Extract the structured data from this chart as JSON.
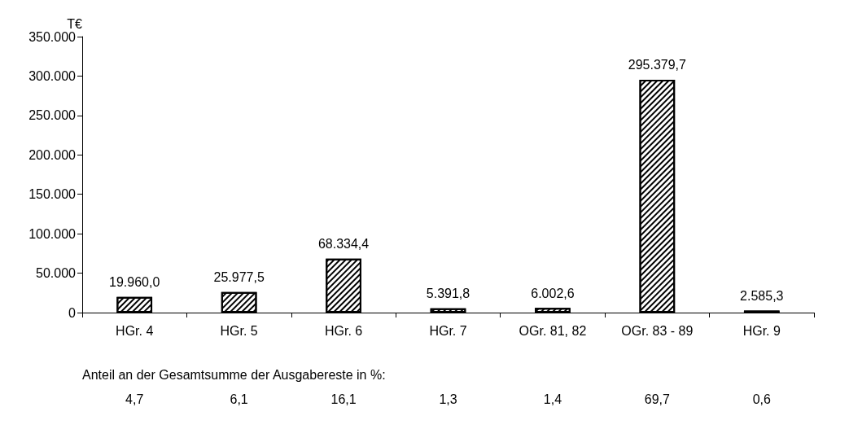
{
  "chart_data": {
    "type": "bar",
    "ylabel": "T€",
    "categories": [
      "HGr. 4",
      "HGr. 5",
      "HGr. 6",
      "HGr. 7",
      "OGr. 81, 82",
      "OGr. 83 - 89",
      "HGr. 9"
    ],
    "values": [
      19960.0,
      25977.5,
      68334.4,
      5391.8,
      6002.6,
      295379.7,
      2585.3
    ],
    "value_labels": [
      "19.960,0",
      "25.977,5",
      "68.334,4",
      "5.391,8",
      "6.002,6",
      "295.379,7",
      "2.585,3"
    ],
    "color": "#ffffff",
    "ylim": [
      0,
      350000
    ],
    "yticks": [
      {
        "value": 0,
        "label": "0"
      },
      {
        "value": 50000,
        "label": "50.000"
      },
      {
        "value": 100000,
        "label": "100.000"
      },
      {
        "value": 150000,
        "label": "150.000"
      },
      {
        "value": 200000,
        "label": "200.000"
      },
      {
        "value": 250000,
        "label": "250.000"
      },
      {
        "value": 300000,
        "label": "300.000"
      },
      {
        "value": 350000,
        "label": "350.000"
      }
    ],
    "grid": false,
    "annotations": [
      "Anteil an der Gesamtsumme der Ausgabereste in %:",
      "4,7",
      "6,1",
      "16,1",
      "1,3",
      "1,4",
      "69,7",
      "0,6"
    ]
  }
}
